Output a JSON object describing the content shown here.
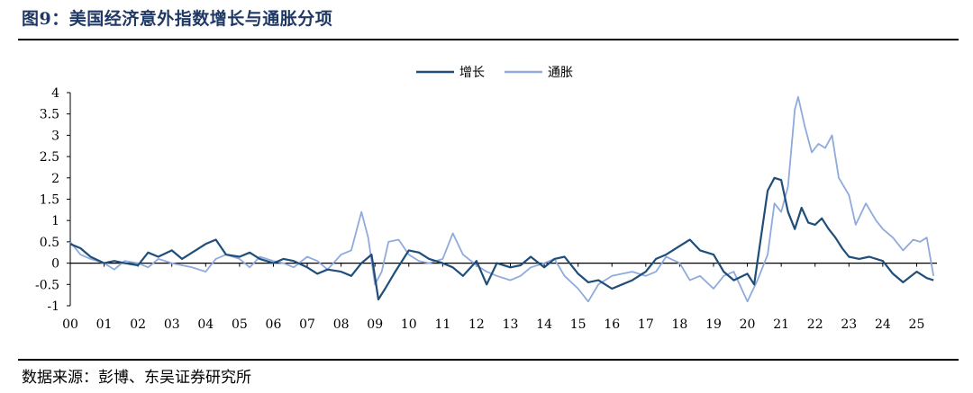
{
  "title": "图9：美国经济意外指数增长与通胀分项",
  "source": "数据来源：彭博、东吴证券研究所",
  "colors": {
    "growth": "#1f4e79",
    "inflation": "#8faadc",
    "title": "#1f3864"
  },
  "chart_data": {
    "type": "line",
    "legend_position": "top-center",
    "grid": false,
    "xlim": [
      2000.0,
      2025.6
    ],
    "ylim": [
      -1,
      4
    ],
    "x_ticks": [
      0,
      1,
      2,
      3,
      4,
      5,
      6,
      7,
      8,
      9,
      10,
      11,
      12,
      13,
      14,
      15,
      16,
      17,
      18,
      19,
      20,
      21,
      22,
      23,
      24,
      25
    ],
    "x_tick_labels": [
      "00",
      "01",
      "02",
      "03",
      "04",
      "05",
      "06",
      "07",
      "08",
      "09",
      "10",
      "11",
      "12",
      "13",
      "14",
      "15",
      "16",
      "17",
      "18",
      "19",
      "20",
      "21",
      "22",
      "23",
      "24",
      "25"
    ],
    "y_ticks": [
      -1,
      -0.5,
      0,
      0.5,
      1,
      1.5,
      2,
      2.5,
      3,
      3.5,
      4
    ],
    "y_tick_labels": [
      "-1",
      "-0.5",
      "0",
      "0.5",
      "1",
      "1.5",
      "2",
      "2.5",
      "3",
      "3.5",
      "4"
    ],
    "series": [
      {
        "name": "增长",
        "color": "#1f4e79",
        "x": [
          2000.0,
          2000.3,
          2000.6,
          2001.0,
          2001.3,
          2001.6,
          2002.0,
          2002.3,
          2002.6,
          2003.0,
          2003.3,
          2003.6,
          2004.0,
          2004.3,
          2004.6,
          2005.0,
          2005.3,
          2005.6,
          2006.0,
          2006.3,
          2006.6,
          2007.0,
          2007.3,
          2007.6,
          2008.0,
          2008.3,
          2008.6,
          2008.9,
          2009.1,
          2009.3,
          2009.6,
          2010.0,
          2010.3,
          2010.6,
          2011.0,
          2011.3,
          2011.6,
          2012.0,
          2012.3,
          2012.6,
          2013.0,
          2013.3,
          2013.6,
          2014.0,
          2014.3,
          2014.6,
          2015.0,
          2015.3,
          2015.6,
          2016.0,
          2016.3,
          2016.6,
          2017.0,
          2017.3,
          2017.6,
          2018.0,
          2018.3,
          2018.6,
          2019.0,
          2019.3,
          2019.6,
          2020.0,
          2020.2,
          2020.4,
          2020.6,
          2020.8,
          2021.0,
          2021.2,
          2021.4,
          2021.6,
          2021.8,
          2022.0,
          2022.2,
          2022.4,
          2022.6,
          2022.8,
          2023.0,
          2023.3,
          2023.6,
          2024.0,
          2024.3,
          2024.6,
          2025.0,
          2025.3,
          2025.5
        ],
        "values": [
          0.45,
          0.35,
          0.15,
          0.0,
          0.05,
          0.0,
          -0.05,
          0.25,
          0.15,
          0.3,
          0.1,
          0.25,
          0.45,
          0.55,
          0.2,
          0.15,
          0.25,
          0.1,
          0.0,
          0.1,
          0.05,
          -0.1,
          -0.25,
          -0.15,
          -0.2,
          -0.3,
          0.0,
          0.2,
          -0.85,
          -0.6,
          -0.2,
          0.3,
          0.25,
          0.1,
          0.0,
          -0.1,
          -0.3,
          0.05,
          -0.5,
          0.0,
          -0.1,
          -0.05,
          0.15,
          -0.1,
          0.1,
          0.15,
          -0.25,
          -0.45,
          -0.4,
          -0.6,
          -0.5,
          -0.4,
          -0.2,
          0.1,
          0.2,
          0.4,
          0.55,
          0.3,
          0.2,
          -0.2,
          -0.4,
          -0.25,
          -0.5,
          0.6,
          1.7,
          2.0,
          1.95,
          1.2,
          0.8,
          1.3,
          0.95,
          0.9,
          1.05,
          0.8,
          0.6,
          0.35,
          0.15,
          0.1,
          0.15,
          0.05,
          -0.25,
          -0.45,
          -0.2,
          -0.35,
          -0.4
        ]
      },
      {
        "name": "通胀",
        "color": "#8faadc",
        "x": [
          2000.0,
          2000.3,
          2000.6,
          2001.0,
          2001.3,
          2001.6,
          2002.0,
          2002.3,
          2002.6,
          2003.0,
          2003.3,
          2003.6,
          2004.0,
          2004.3,
          2004.6,
          2005.0,
          2005.3,
          2005.6,
          2006.0,
          2006.3,
          2006.6,
          2007.0,
          2007.3,
          2007.6,
          2008.0,
          2008.3,
          2008.6,
          2008.8,
          2009.0,
          2009.2,
          2009.4,
          2009.7,
          2010.0,
          2010.3,
          2010.6,
          2011.0,
          2011.3,
          2011.6,
          2012.0,
          2012.3,
          2012.6,
          2013.0,
          2013.3,
          2013.6,
          2014.0,
          2014.3,
          2014.6,
          2015.0,
          2015.3,
          2015.6,
          2016.0,
          2016.3,
          2016.6,
          2017.0,
          2017.3,
          2017.6,
          2018.0,
          2018.3,
          2018.6,
          2019.0,
          2019.3,
          2019.6,
          2020.0,
          2020.3,
          2020.6,
          2020.8,
          2021.0,
          2021.2,
          2021.4,
          2021.5,
          2021.7,
          2021.9,
          2022.1,
          2022.3,
          2022.5,
          2022.7,
          2023.0,
          2023.2,
          2023.5,
          2023.8,
          2024.0,
          2024.3,
          2024.6,
          2024.9,
          2025.1,
          2025.3,
          2025.5
        ],
        "values": [
          0.5,
          0.2,
          0.1,
          0.0,
          -0.15,
          0.05,
          0.0,
          -0.1,
          0.1,
          0.0,
          -0.05,
          -0.1,
          -0.2,
          0.1,
          0.2,
          0.1,
          -0.1,
          0.15,
          0.05,
          0.0,
          -0.1,
          0.15,
          0.05,
          -0.15,
          0.2,
          0.3,
          1.2,
          0.6,
          -0.5,
          -0.2,
          0.5,
          0.55,
          0.2,
          0.05,
          0.0,
          0.1,
          0.7,
          0.2,
          -0.05,
          -0.2,
          -0.3,
          -0.4,
          -0.3,
          -0.1,
          0.0,
          0.1,
          -0.3,
          -0.6,
          -0.9,
          -0.5,
          -0.3,
          -0.25,
          -0.2,
          -0.3,
          -0.2,
          0.15,
          0.0,
          -0.4,
          -0.3,
          -0.6,
          -0.3,
          -0.2,
          -0.9,
          -0.4,
          0.2,
          1.4,
          1.2,
          1.8,
          3.6,
          3.9,
          3.2,
          2.6,
          2.8,
          2.7,
          3.0,
          2.0,
          1.6,
          0.9,
          1.4,
          1.0,
          0.8,
          0.6,
          0.3,
          0.55,
          0.5,
          0.6,
          -0.3
        ]
      }
    ]
  }
}
